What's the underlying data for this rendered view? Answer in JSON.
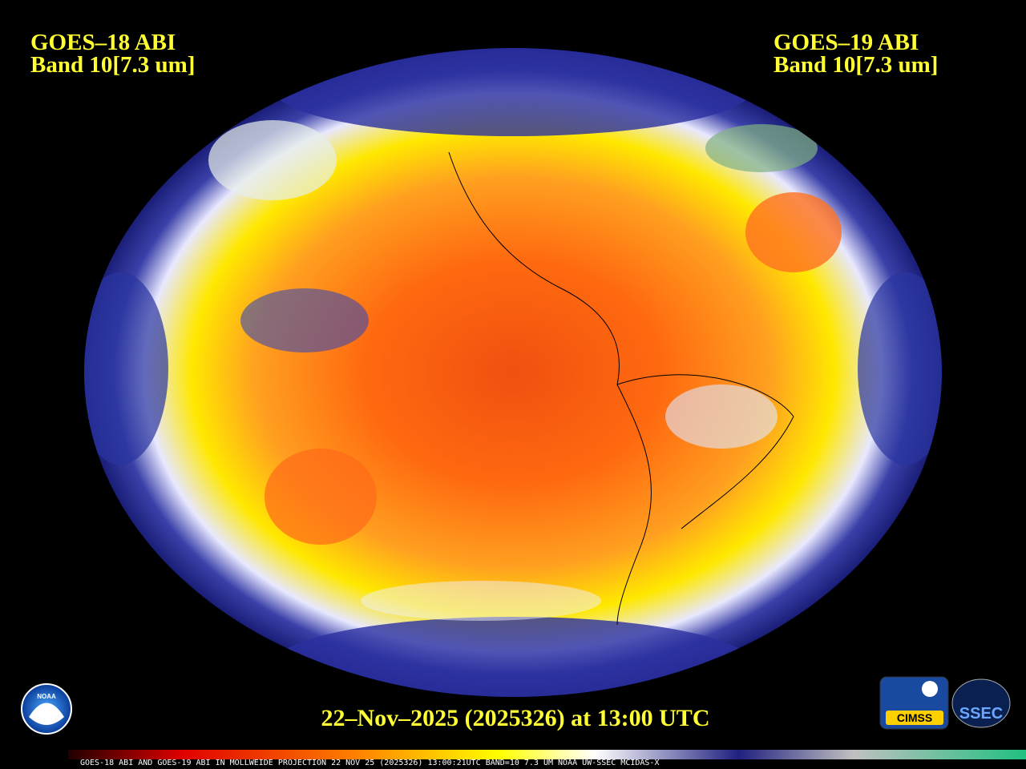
{
  "header": {
    "left": {
      "line1": "GOES–18 ABI",
      "line2": "Band 10[7.3 um]"
    },
    "right": {
      "line1": "GOES–19 ABI",
      "line2": "Band 10[7.3 um]"
    }
  },
  "timestamp": "22–Nov–2025 (2025326) at 13:00 UTC",
  "footer": "GOES-18 ABI AND GOES-19 ABI IN MOLLWEIDE PROJECTION 22 NOV 25 (2025326) 13:00:21UTC BAND=10 7.3 UM NOAA UW-SSEC MCIDAS-X",
  "logos": {
    "noaa": "NOAA",
    "cimss": "CIMSS",
    "ssec": "SSEC"
  }
}
